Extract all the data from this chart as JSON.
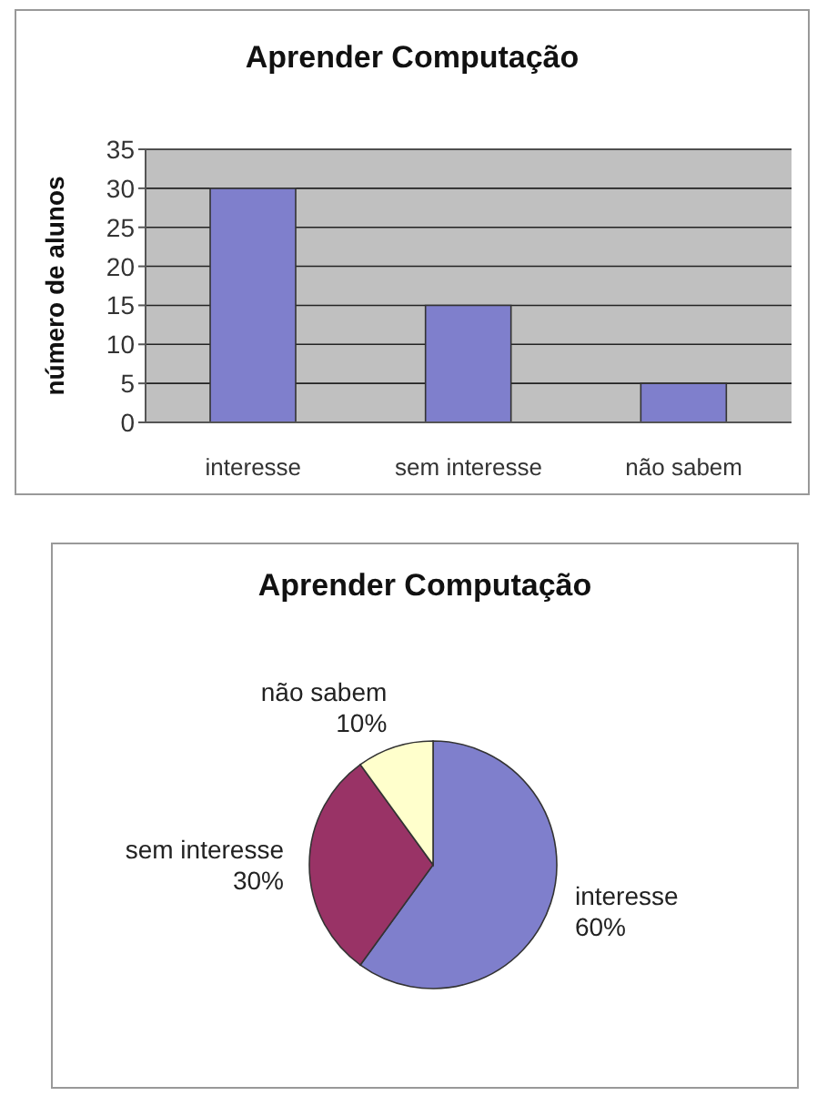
{
  "chart_data": [
    {
      "type": "bar",
      "title": "Aprender Computação",
      "ylabel": "número de alunos",
      "categories": [
        "interesse",
        "sem interesse",
        "não sabem"
      ],
      "values": [
        30,
        15,
        5
      ],
      "color": "#7f7fcc",
      "ylim": [
        0,
        35
      ],
      "yticks": [
        0,
        5,
        10,
        15,
        20,
        25,
        30,
        35
      ],
      "grid": "y"
    },
    {
      "type": "pie",
      "title": "Aprender Computação",
      "categories": [
        "interesse",
        "sem interesse",
        "não sabem"
      ],
      "values": [
        60,
        30,
        10
      ],
      "colors": [
        "#7f7fcc",
        "#993366",
        "#ffffcc"
      ],
      "value_labels": [
        "60%",
        "30%",
        "10%"
      ]
    }
  ]
}
